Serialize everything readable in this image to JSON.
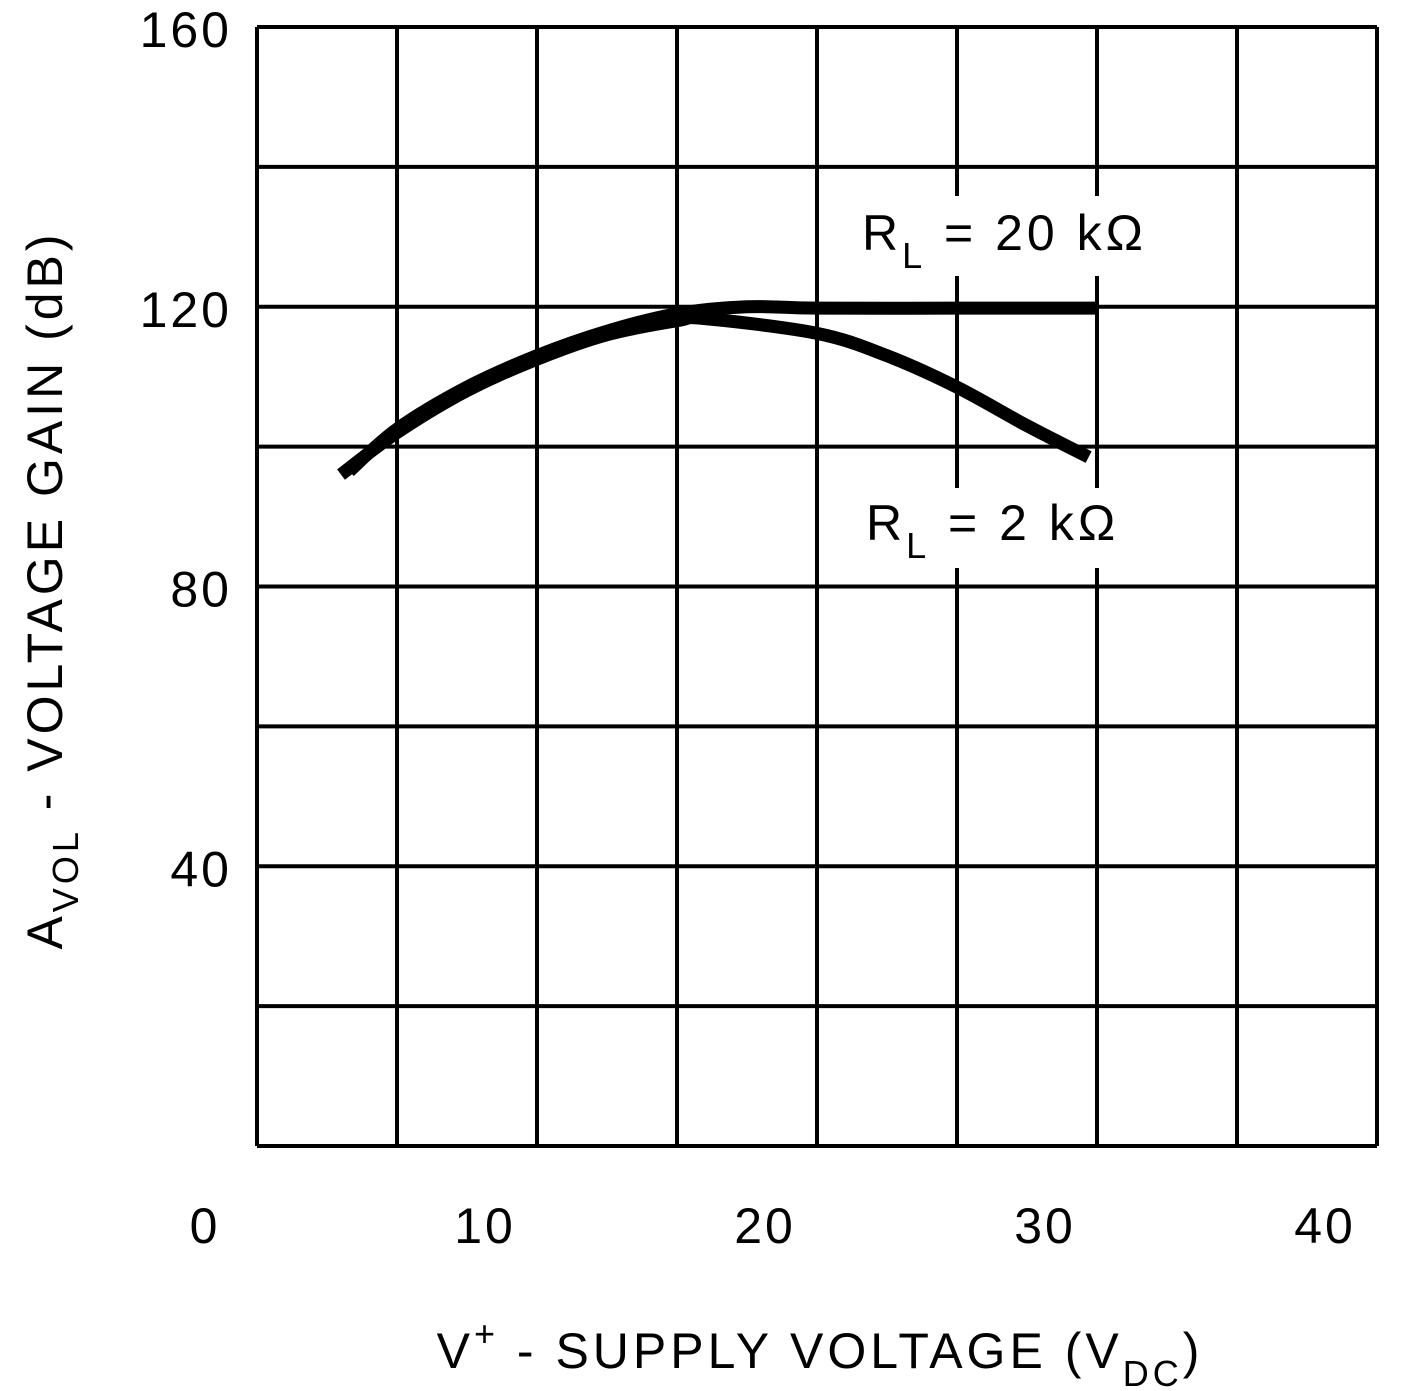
{
  "chart_data": {
    "type": "line",
    "xlabel": {
      "main": "V",
      "sup": "+",
      "rest": " - SUPPLY VOLTAGE (V",
      "sub": "DC",
      "end": ")"
    },
    "ylabel": {
      "main": "A",
      "sub": "VOL",
      "rest": " - VOLTAGE GAIN (dB)"
    },
    "xlim": [
      0,
      40
    ],
    "ylim": [
      0,
      160
    ],
    "x_ticks": [
      0,
      10,
      20,
      30,
      40
    ],
    "y_ticks": [
      40,
      80,
      120,
      160
    ],
    "x_grid_step": 5,
    "y_grid_step": 20,
    "grid": true,
    "line_color": "#000000",
    "series": [
      {
        "name": "RL = 20 kΩ",
        "label": {
          "main": "R",
          "sub": "L",
          "rest": " = 20 kΩ"
        },
        "x": [
          3.3,
          5,
          7.5,
          10,
          12.5,
          15,
          17.5,
          20,
          25,
          30
        ],
        "y": [
          96.5,
          102.5,
          108.5,
          113,
          116.5,
          119,
          120,
          119.8,
          119.8,
          119.8
        ]
      },
      {
        "name": "RL = 2 kΩ",
        "label": {
          "main": "R",
          "sub": "L",
          "rest": " = 2 kΩ"
        },
        "x": [
          3,
          5,
          7.5,
          10,
          12.5,
          15,
          16,
          20,
          22.5,
          25,
          27.5,
          29.7
        ],
        "y": [
          96,
          102,
          108,
          112.5,
          116,
          118,
          118.3,
          116.2,
          113,
          108.5,
          103,
          98.5
        ]
      }
    ]
  }
}
